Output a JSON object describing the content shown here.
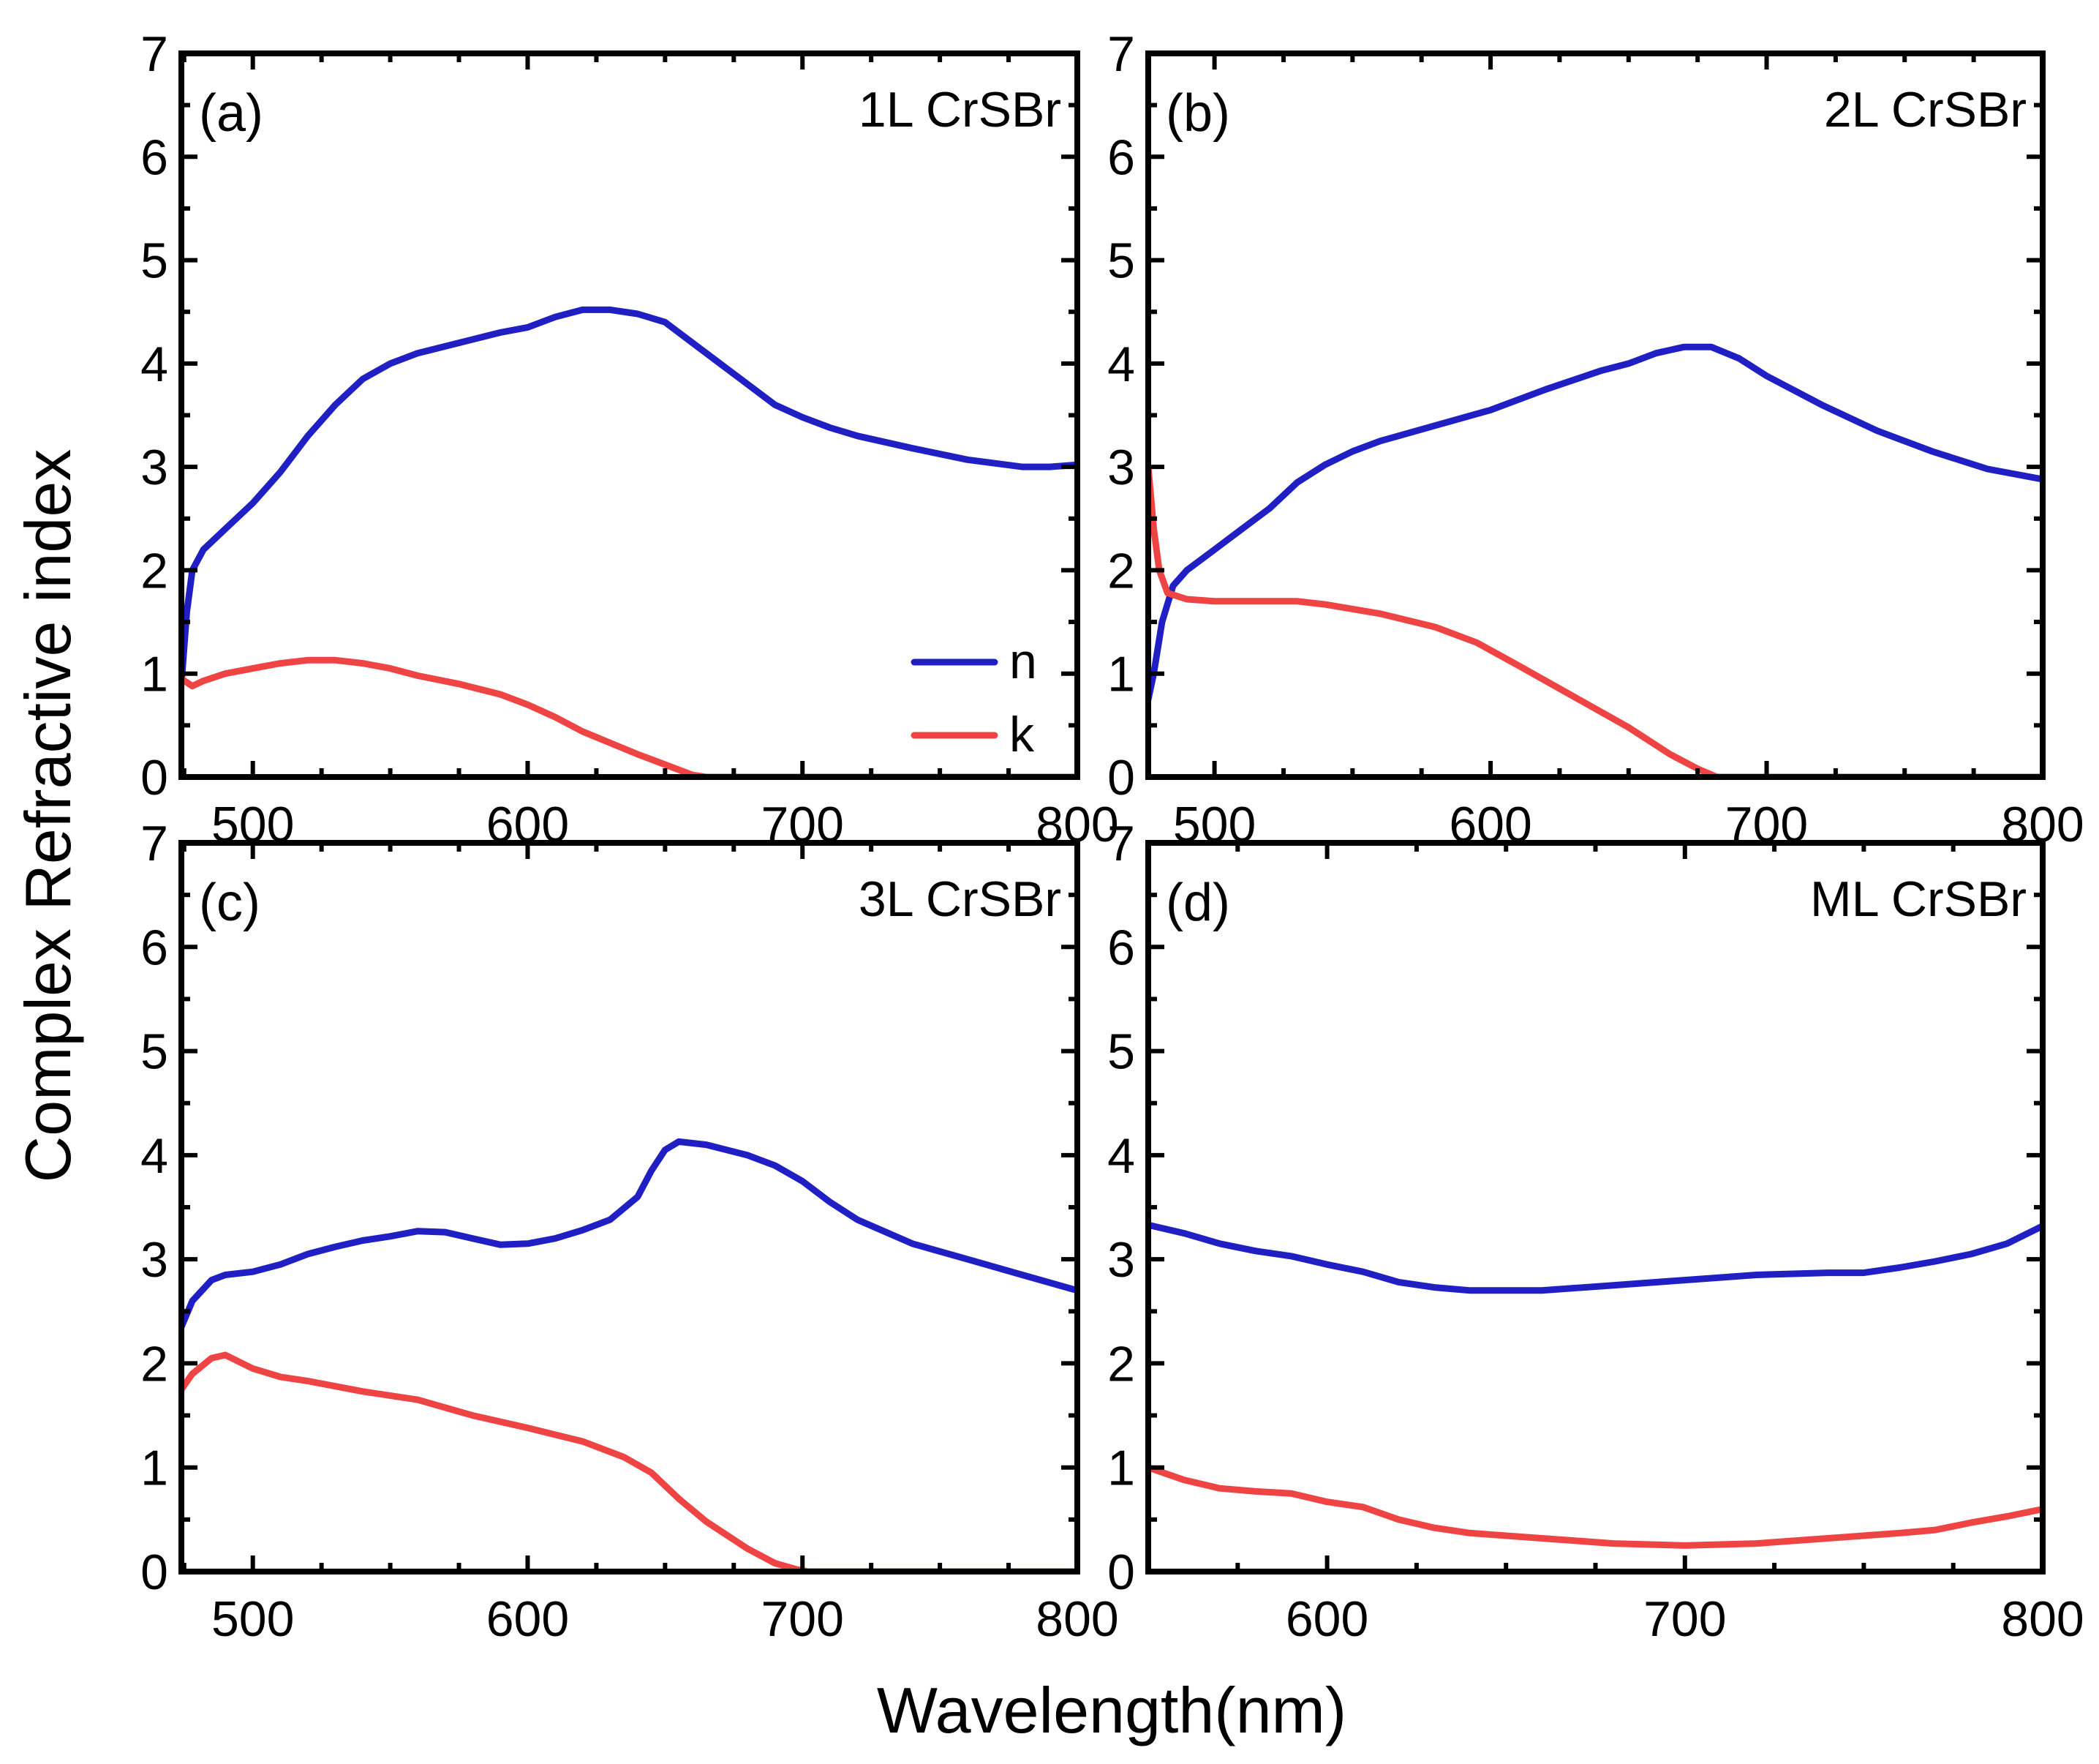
{
  "figure": {
    "ylabel": "Complex Refractive index",
    "xlabel": "Wavelength(nm)",
    "colors": {
      "n": "#1f1fc4",
      "k": "#ee4444",
      "axis": "#000000"
    }
  },
  "legend": {
    "items": [
      {
        "key": "n",
        "label": "n"
      },
      {
        "key": "k",
        "label": "k"
      }
    ]
  },
  "chart_data": [
    {
      "type": "line",
      "panel": "a",
      "panel_label": "(a)",
      "title": "1L CrSBr",
      "xlim": [
        474,
        800
      ],
      "ylim": [
        0,
        7
      ],
      "xticks": [
        500,
        600,
        700,
        800
      ],
      "yticks": [
        0,
        1,
        2,
        3,
        4,
        5,
        6,
        7
      ],
      "series": [
        {
          "name": "n",
          "color": "#1f1fc4",
          "points": [
            [
              474,
              0.9
            ],
            [
              476,
              1.6
            ],
            [
              478,
              2.0
            ],
            [
              482,
              2.2
            ],
            [
              490,
              2.4
            ],
            [
              500,
              2.65
            ],
            [
              510,
              2.95
            ],
            [
              520,
              3.3
            ],
            [
              530,
              3.6
            ],
            [
              540,
              3.85
            ],
            [
              550,
              4.0
            ],
            [
              560,
              4.1
            ],
            [
              575,
              4.2
            ],
            [
              590,
              4.3
            ],
            [
              600,
              4.35
            ],
            [
              610,
              4.45
            ],
            [
              620,
              4.52
            ],
            [
              630,
              4.52
            ],
            [
              640,
              4.48
            ],
            [
              650,
              4.4
            ],
            [
              660,
              4.2
            ],
            [
              670,
              4.0
            ],
            [
              680,
              3.8
            ],
            [
              690,
              3.6
            ],
            [
              700,
              3.48
            ],
            [
              710,
              3.38
            ],
            [
              720,
              3.3
            ],
            [
              740,
              3.18
            ],
            [
              760,
              3.07
            ],
            [
              780,
              3.0
            ],
            [
              790,
              3.0
            ],
            [
              800,
              3.02
            ]
          ]
        },
        {
          "name": "k",
          "color": "#ee4444",
          "points": [
            [
              474,
              0.95
            ],
            [
              478,
              0.88
            ],
            [
              482,
              0.93
            ],
            [
              490,
              1.0
            ],
            [
              500,
              1.05
            ],
            [
              510,
              1.1
            ],
            [
              520,
              1.13
            ],
            [
              530,
              1.13
            ],
            [
              540,
              1.1
            ],
            [
              550,
              1.05
            ],
            [
              560,
              0.98
            ],
            [
              575,
              0.9
            ],
            [
              590,
              0.8
            ],
            [
              600,
              0.7
            ],
            [
              610,
              0.58
            ],
            [
              620,
              0.44
            ],
            [
              630,
              0.33
            ],
            [
              640,
              0.22
            ],
            [
              650,
              0.12
            ],
            [
              660,
              0.02
            ],
            [
              665,
              0.0
            ],
            [
              700,
              0.0
            ],
            [
              750,
              0.0
            ],
            [
              800,
              0.0
            ]
          ]
        }
      ]
    },
    {
      "type": "line",
      "panel": "b",
      "panel_label": "(b)",
      "title": "2L CrSBr",
      "xlim": [
        476,
        800
      ],
      "ylim": [
        0,
        7
      ],
      "xticks": [
        500,
        600,
        700,
        800
      ],
      "yticks": [
        0,
        1,
        2,
        3,
        4,
        5,
        6,
        7
      ],
      "series": [
        {
          "name": "n",
          "color": "#1f1fc4",
          "points": [
            [
              476,
              0.75
            ],
            [
              478,
              1.0
            ],
            [
              481,
              1.5
            ],
            [
              485,
              1.85
            ],
            [
              490,
              2.0
            ],
            [
              500,
              2.2
            ],
            [
              510,
              2.4
            ],
            [
              520,
              2.6
            ],
            [
              530,
              2.85
            ],
            [
              540,
              3.02
            ],
            [
              550,
              3.15
            ],
            [
              560,
              3.25
            ],
            [
              580,
              3.4
            ],
            [
              600,
              3.55
            ],
            [
              620,
              3.75
            ],
            [
              640,
              3.93
            ],
            [
              650,
              4.0
            ],
            [
              660,
              4.1
            ],
            [
              670,
              4.16
            ],
            [
              680,
              4.16
            ],
            [
              690,
              4.05
            ],
            [
              700,
              3.88
            ],
            [
              720,
              3.6
            ],
            [
              740,
              3.35
            ],
            [
              760,
              3.15
            ],
            [
              780,
              2.98
            ],
            [
              800,
              2.88
            ]
          ]
        },
        {
          "name": "k",
          "color": "#ee4444",
          "points": [
            [
              476,
              3.0
            ],
            [
              478,
              2.4
            ],
            [
              480,
              2.0
            ],
            [
              483,
              1.78
            ],
            [
              490,
              1.72
            ],
            [
              500,
              1.7
            ],
            [
              520,
              1.7
            ],
            [
              530,
              1.7
            ],
            [
              540,
              1.67
            ],
            [
              560,
              1.58
            ],
            [
              580,
              1.45
            ],
            [
              595,
              1.3
            ],
            [
              610,
              1.08
            ],
            [
              630,
              0.78
            ],
            [
              650,
              0.48
            ],
            [
              665,
              0.22
            ],
            [
              675,
              0.08
            ],
            [
              682,
              0.0
            ],
            [
              700,
              0.0
            ],
            [
              750,
              0.0
            ],
            [
              800,
              0.0
            ]
          ]
        }
      ]
    },
    {
      "type": "line",
      "panel": "c",
      "panel_label": "(c)",
      "title": "3L CrSBr",
      "xlim": [
        474,
        800
      ],
      "ylim": [
        0,
        7
      ],
      "xticks": [
        500,
        600,
        700,
        800
      ],
      "yticks": [
        0,
        1,
        2,
        3,
        4,
        5,
        6,
        7
      ],
      "series": [
        {
          "name": "n",
          "color": "#1f1fc4",
          "points": [
            [
              474,
              2.35
            ],
            [
              478,
              2.6
            ],
            [
              485,
              2.8
            ],
            [
              490,
              2.85
            ],
            [
              500,
              2.88
            ],
            [
              510,
              2.95
            ],
            [
              520,
              3.05
            ],
            [
              530,
              3.12
            ],
            [
              540,
              3.18
            ],
            [
              550,
              3.22
            ],
            [
              560,
              3.27
            ],
            [
              570,
              3.26
            ],
            [
              580,
              3.2
            ],
            [
              590,
              3.14
            ],
            [
              600,
              3.15
            ],
            [
              610,
              3.2
            ],
            [
              620,
              3.28
            ],
            [
              630,
              3.38
            ],
            [
              640,
              3.6
            ],
            [
              645,
              3.85
            ],
            [
              650,
              4.05
            ],
            [
              655,
              4.13
            ],
            [
              665,
              4.1
            ],
            [
              680,
              4.0
            ],
            [
              690,
              3.9
            ],
            [
              700,
              3.75
            ],
            [
              710,
              3.55
            ],
            [
              720,
              3.38
            ],
            [
              740,
              3.15
            ],
            [
              760,
              3.0
            ],
            [
              780,
              2.85
            ],
            [
              800,
              2.7
            ]
          ]
        },
        {
          "name": "k",
          "color": "#ee4444",
          "points": [
            [
              474,
              1.75
            ],
            [
              478,
              1.9
            ],
            [
              485,
              2.05
            ],
            [
              490,
              2.08
            ],
            [
              500,
              1.95
            ],
            [
              510,
              1.87
            ],
            [
              520,
              1.83
            ],
            [
              530,
              1.78
            ],
            [
              540,
              1.73
            ],
            [
              560,
              1.65
            ],
            [
              580,
              1.5
            ],
            [
              600,
              1.38
            ],
            [
              620,
              1.25
            ],
            [
              635,
              1.1
            ],
            [
              645,
              0.95
            ],
            [
              655,
              0.7
            ],
            [
              665,
              0.48
            ],
            [
              680,
              0.22
            ],
            [
              690,
              0.08
            ],
            [
              698,
              0.02
            ],
            [
              702,
              0.0
            ],
            [
              750,
              0.0
            ],
            [
              800,
              0.0
            ]
          ]
        }
      ]
    },
    {
      "type": "line",
      "panel": "d",
      "panel_label": "(d)",
      "title": "ML CrSBr",
      "xlim": [
        550,
        800
      ],
      "ylim": [
        0,
        7
      ],
      "xticks": [
        600,
        700,
        800
      ],
      "yticks": [
        0,
        1,
        2,
        3,
        4,
        5,
        6,
        7
      ],
      "series": [
        {
          "name": "n",
          "color": "#1f1fc4",
          "points": [
            [
              550,
              3.33
            ],
            [
              560,
              3.25
            ],
            [
              570,
              3.15
            ],
            [
              580,
              3.08
            ],
            [
              590,
              3.03
            ],
            [
              600,
              2.95
            ],
            [
              610,
              2.88
            ],
            [
              620,
              2.78
            ],
            [
              630,
              2.73
            ],
            [
              640,
              2.7
            ],
            [
              660,
              2.7
            ],
            [
              680,
              2.75
            ],
            [
              700,
              2.8
            ],
            [
              720,
              2.85
            ],
            [
              740,
              2.87
            ],
            [
              750,
              2.87
            ],
            [
              760,
              2.92
            ],
            [
              770,
              2.98
            ],
            [
              780,
              3.05
            ],
            [
              790,
              3.15
            ],
            [
              800,
              3.32
            ]
          ]
        },
        {
          "name": "k",
          "color": "#ee4444",
          "points": [
            [
              550,
              1.0
            ],
            [
              560,
              0.88
            ],
            [
              570,
              0.8
            ],
            [
              580,
              0.77
            ],
            [
              590,
              0.75
            ],
            [
              600,
              0.67
            ],
            [
              610,
              0.62
            ],
            [
              620,
              0.5
            ],
            [
              630,
              0.42
            ],
            [
              640,
              0.37
            ],
            [
              660,
              0.32
            ],
            [
              680,
              0.27
            ],
            [
              700,
              0.25
            ],
            [
              720,
              0.27
            ],
            [
              740,
              0.32
            ],
            [
              760,
              0.37
            ],
            [
              770,
              0.4
            ],
            [
              780,
              0.47
            ],
            [
              790,
              0.53
            ],
            [
              800,
              0.6
            ]
          ]
        }
      ]
    }
  ]
}
